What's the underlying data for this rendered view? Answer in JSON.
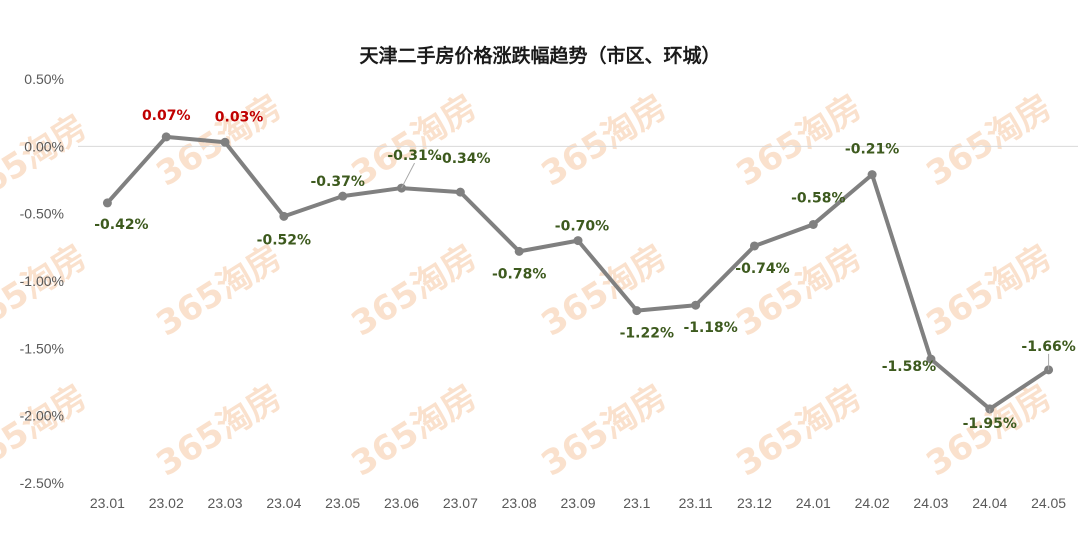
{
  "watermark": "365淘房",
  "chart_data": {
    "type": "line",
    "title": "天津二手房价格涨跌幅趋势（市区、环城）",
    "xlabel": "",
    "ylabel": "",
    "categories": [
      "23.01",
      "23.02",
      "23.03",
      "23.04",
      "23.05",
      "23.06",
      "23.07",
      "23.08",
      "23.09",
      "23.1",
      "23.11",
      "23.12",
      "24.01",
      "24.02",
      "24.03",
      "24.04",
      "24.05"
    ],
    "series": [
      {
        "values": [
          -0.42,
          0.07,
          0.03,
          -0.52,
          -0.37,
          -0.31,
          -0.34,
          -0.78,
          -0.7,
          -1.22,
          -1.18,
          -0.74,
          -0.58,
          -0.21,
          -1.58,
          -1.95,
          -1.66
        ],
        "labels": [
          "-0.42%",
          "0.07%",
          "0.03%",
          "-0.52%",
          "-0.37%",
          "-0.31%",
          "-0.34%",
          "-0.78%",
          "-0.70%",
          "-1.22%",
          "-1.18%",
          "-0.74%",
          "-0.58%",
          "-0.21%",
          "-1.58%",
          "-1.95%",
          "-1.66%"
        ]
      }
    ],
    "ylim": [
      -2.5,
      0.5
    ],
    "yticks": [
      "0.50%",
      "0.00%",
      "-0.50%",
      "-1.00%",
      "-1.50%",
      "-2.00%",
      "-2.50%"
    ],
    "grid": false,
    "colors": {
      "line": "#808080",
      "negative_label": "#3d5a1e",
      "positive_label": "#c00000"
    }
  }
}
